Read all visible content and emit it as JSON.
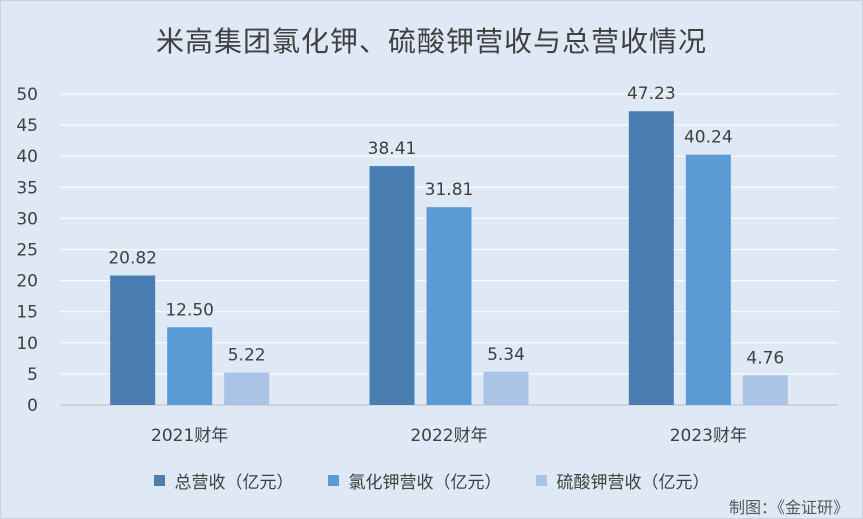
{
  "chart_data": {
    "type": "bar",
    "title": "米高集团氯化钾、硫酸钾营收与总营收情况",
    "categories": [
      "2021财年",
      "2022财年",
      "2023财年"
    ],
    "series": [
      {
        "name": "总营收（亿元）",
        "values": [
          20.82,
          38.41,
          47.23
        ],
        "labels": [
          "20.82",
          "38.41",
          "47.23"
        ],
        "color": "#4a7eb3"
      },
      {
        "name": "氯化钾营收（亿元）",
        "values": [
          12.5,
          31.81,
          40.24
        ],
        "labels": [
          "12.50",
          "31.81",
          "40.24"
        ],
        "color": "#5b9bd5"
      },
      {
        "name": "硫酸钾营收（亿元）",
        "values": [
          5.22,
          5.34,
          4.76
        ],
        "labels": [
          "5.22",
          "5.34",
          "4.76"
        ],
        "color": "#a9c4e4"
      }
    ],
    "ylim": [
      0,
      50
    ],
    "yticks": [
      0,
      5,
      10,
      15,
      20,
      25,
      30,
      35,
      40,
      45,
      50
    ],
    "xlabel": "",
    "ylabel": "",
    "grid": true,
    "legend_position": "bottom"
  },
  "credit": "制图：《金证研》",
  "colors": {
    "background": "#dfe9f5",
    "grid": "#ffffff",
    "text": "#404040"
  }
}
